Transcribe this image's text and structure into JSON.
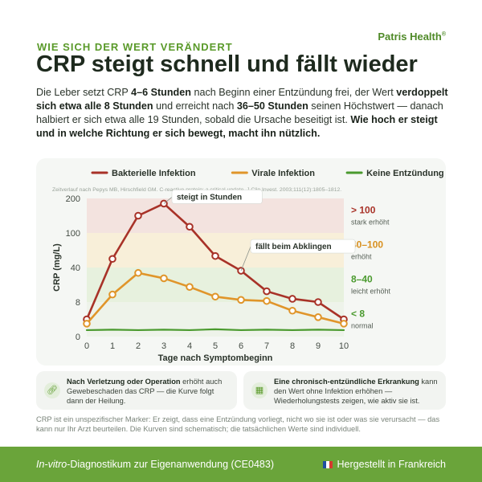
{
  "header": {
    "kicker": "WIE SICH DER WERT VERÄNDERT",
    "brand": "Patris Health",
    "brand_mark": "®",
    "title": "CRP steigt schnell und fällt wieder"
  },
  "intro": [
    {
      "t": "Die Leber setzt CRP ",
      "b": false
    },
    {
      "t": "4–6 Stunden",
      "b": true
    },
    {
      "t": " nach Beginn einer Entzündung frei, der Wert ",
      "b": false
    },
    {
      "t": "verdoppelt sich etwa alle 8 Stunden",
      "b": true
    },
    {
      "t": " und erreicht nach ",
      "b": false
    },
    {
      "t": "36–50 Stunden",
      "b": true
    },
    {
      "t": " seinen Höchstwert — danach halbiert er sich etwa alle 19 Stunden, sobald die Ursache beseitigt ist. ",
      "b": false
    },
    {
      "t": "Wie hoch er steigt und in welche Richtung er sich bewegt, macht ihn nützlich.",
      "b": true
    }
  ],
  "chart_data": {
    "type": "line",
    "source": "Zeitverlauf nach Pepys MB, Hirschfield GM. C-reactive protein: a critical update. J Clin Invest. 2003;111(12):1805–1812.",
    "xlabel": "Tage nach Symptombeginn",
    "ylabel": "CRP (mg/L)",
    "x": [
      0,
      1,
      2,
      3,
      4,
      5,
      6,
      7,
      8,
      9,
      10
    ],
    "xticks": [
      "0",
      "1",
      "2",
      "3",
      "4",
      "5",
      "6",
      "7",
      "8",
      "9",
      "10"
    ],
    "yticks": [
      "0",
      "8",
      "40",
      "100",
      "200"
    ],
    "series": [
      {
        "name": "Bakterielle Infektion",
        "color": "#a83228",
        "values": [
          4,
          55,
          150,
          185,
          118,
          60,
          37,
          18,
          11,
          8,
          4
        ],
        "markers": true
      },
      {
        "name": "Virale Infektion",
        "color": "#e0952a",
        "values": [
          3,
          15,
          35,
          30,
          22,
          13,
          10,
          9,
          6,
          4.5,
          3
        ],
        "markers": true
      },
      {
        "name": "Keine Entzündung",
        "color": "#4a9a2e",
        "values": [
          1.5,
          1.6,
          1.5,
          1.6,
          1.5,
          1.7,
          1.5,
          1.6,
          1.5,
          1.6,
          1.5
        ],
        "markers": false
      }
    ],
    "bands": [
      {
        "range": "> 100",
        "label": "stark erhöht",
        "color": "#a83228",
        "fill": "#f3e3df"
      },
      {
        "range": "40–100",
        "label": "erhöht",
        "color": "#d8901f",
        "fill": "#f8efd9"
      },
      {
        "range": "8–40",
        "label": "leicht erhöht",
        "color": "#4a9a2e",
        "fill": "#e7f1de"
      },
      {
        "range": "< 8",
        "label": "normal",
        "color": "#4a9a2e",
        "fill": "#eef3ea"
      }
    ],
    "annotations": [
      {
        "text": "steigt in Stunden",
        "x": 3,
        "y": 185
      },
      {
        "text": "fällt beim Abklingen",
        "x": 6,
        "y": 37
      }
    ],
    "legend_position": "top",
    "grid": false
  },
  "notes": [
    {
      "icon": "link-icon",
      "bold": "Nach Verletzung oder Operation",
      "text": " erhöht auch Gewebeschaden das CRP — die Kurve folgt dann der Heilung."
    },
    {
      "icon": "calendar-icon",
      "bold": "Eine chronisch-entzündliche Erkrankung",
      "text": " kann den Wert ohne Infektion erhöhen — Wiederholungstests zeigen, wie aktiv sie ist."
    }
  ],
  "disclaimer": "CRP ist ein unspezifischer Marker: Er zeigt, dass eine Entzündung vorliegt, nicht wo sie ist oder was sie verursacht — das kann nur Ihr Arzt beurteilen. Die Kurven sind schematisch; die tatsächlichen Werte sind individuell.",
  "footer": {
    "left_italic": "In-vitro",
    "left_rest": "-Diagnostikum zur Eigenanwendung (CE0483)",
    "right": "Hergestellt in Frankreich",
    "flag_colors": [
      "#1f4fa0",
      "#ffffff",
      "#d63a2f"
    ]
  }
}
